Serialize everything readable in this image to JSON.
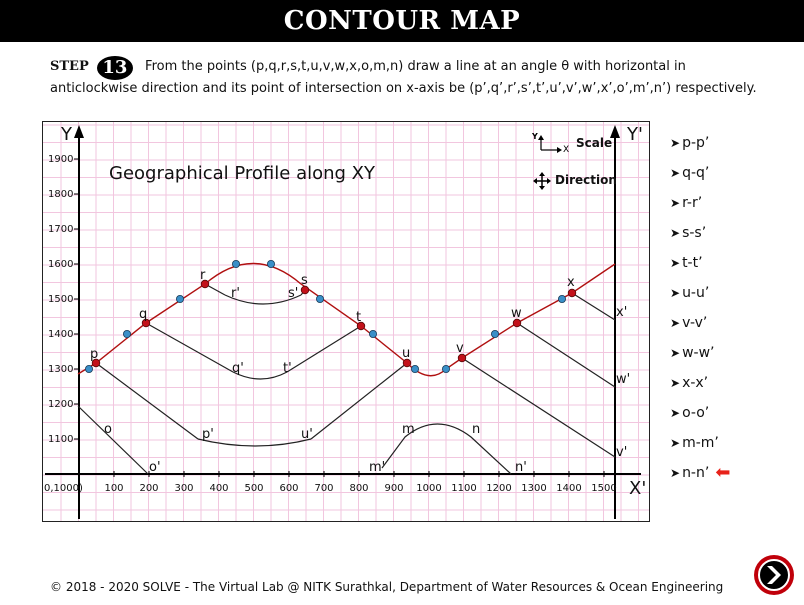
{
  "header": {
    "title": "CONTOUR MAP"
  },
  "step": {
    "label": "STEP",
    "number": "13",
    "text": "From the points (p,q,r,s,t,u,v,w,x,o,m,n) draw a line at an angle θ with horizontal in anticlockwise direction and its point of intersection on x-axis be (p’,q’,r’,s’,t’,u’,v’,w’,x’,o’,m’,n’) respectively."
  },
  "plot": {
    "profile_title": "Geographical Profile along XY",
    "axis_y_label": "Y",
    "axis_yprime_label": "Y'",
    "axis_xprime_label": "X'",
    "origin_label": "0,1000)",
    "scale_label": "Scale",
    "direction_label": "Direction",
    "scale_x_letter": "X",
    "scale_y_letter": "Y",
    "y_ticks": [
      "1900",
      "1800",
      "1700",
      "1600",
      "1500",
      "1400",
      "1300",
      "1200",
      "1100"
    ],
    "x_ticks": [
      "100",
      "200",
      "300",
      "400",
      "500",
      "600",
      "700",
      "800",
      "900",
      "1000",
      "1100",
      "1200",
      "1300",
      "1400",
      "1500"
    ],
    "point_labels": {
      "p": "p",
      "q": "q",
      "r": "r",
      "s": "s",
      "t": "t",
      "u": "u",
      "v": "v",
      "w": "w",
      "x": "x",
      "o": "o",
      "m": "m",
      "n": "n",
      "p2": "p'",
      "q2": "q'",
      "r2": "r'",
      "s2": "s'",
      "t2": "t'",
      "u2": "u'",
      "v2": "v'",
      "w2": "w'",
      "x2": "x'",
      "o2": "o'",
      "m2": "m'",
      "n2": "n'"
    },
    "colors": {
      "grid": "#f2c6df",
      "profile": "#b01010",
      "red_point": "#c3111a",
      "blue_point": "#3a8fc8",
      "line": "#222222"
    }
  },
  "side_list": {
    "items": [
      "p-p’",
      "q-q’",
      "r-r’",
      "s-s’",
      "t-t’",
      "u-u’",
      "v-v’",
      "w-w’",
      "x-x’",
      "o-o’",
      "m-m’",
      "n-n’"
    ],
    "active_index": 11
  },
  "footer": {
    "text": "© 2018 - 2020 SOLVE - The Virtual Lab @ NITK Surathkal, Department of Water Resources & Ocean Engineering"
  },
  "next_button": {
    "icon": "chevron-right-icon"
  }
}
